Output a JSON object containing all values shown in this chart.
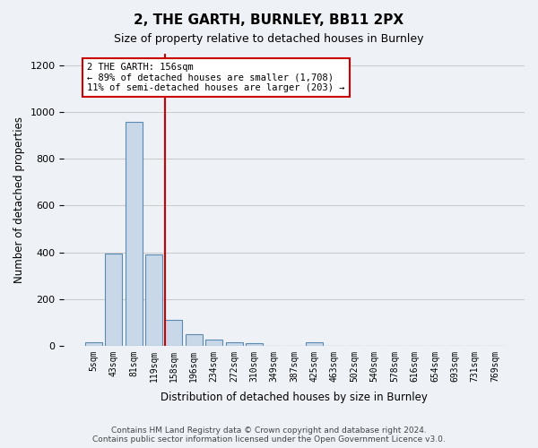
{
  "title": "2, THE GARTH, BURNLEY, BB11 2PX",
  "subtitle": "Size of property relative to detached houses in Burnley",
  "xlabel": "Distribution of detached houses by size in Burnley",
  "ylabel": "Number of detached properties",
  "bin_labels": [
    "5sqm",
    "43sqm",
    "81sqm",
    "119sqm",
    "158sqm",
    "196sqm",
    "234sqm",
    "272sqm",
    "310sqm",
    "349sqm",
    "387sqm",
    "425sqm",
    "463sqm",
    "502sqm",
    "540sqm",
    "578sqm",
    "616sqm",
    "654sqm",
    "693sqm",
    "731sqm",
    "769sqm"
  ],
  "bar_values": [
    15,
    395,
    960,
    390,
    110,
    50,
    25,
    15,
    10,
    0,
    0,
    15,
    0,
    0,
    0,
    0,
    0,
    0,
    0,
    0,
    0
  ],
  "bar_color": "#c8d8e8",
  "bar_edge_color": "#5a8ab0",
  "grid_color": "#cccccc",
  "bg_color": "#eef2f7",
  "red_line_color": "#cc0000",
  "annotation_text": "2 THE GARTH: 156sqm\n← 89% of detached houses are smaller (1,708)\n11% of semi-detached houses are larger (203) →",
  "annotation_box_color": "#ffffff",
  "annotation_box_edge": "#cc0000",
  "footer_text": "Contains HM Land Registry data © Crown copyright and database right 2024.\nContains public sector information licensed under the Open Government Licence v3.0.",
  "ylim": [
    0,
    1250
  ],
  "yticks": [
    0,
    200,
    400,
    600,
    800,
    1000,
    1200
  ]
}
